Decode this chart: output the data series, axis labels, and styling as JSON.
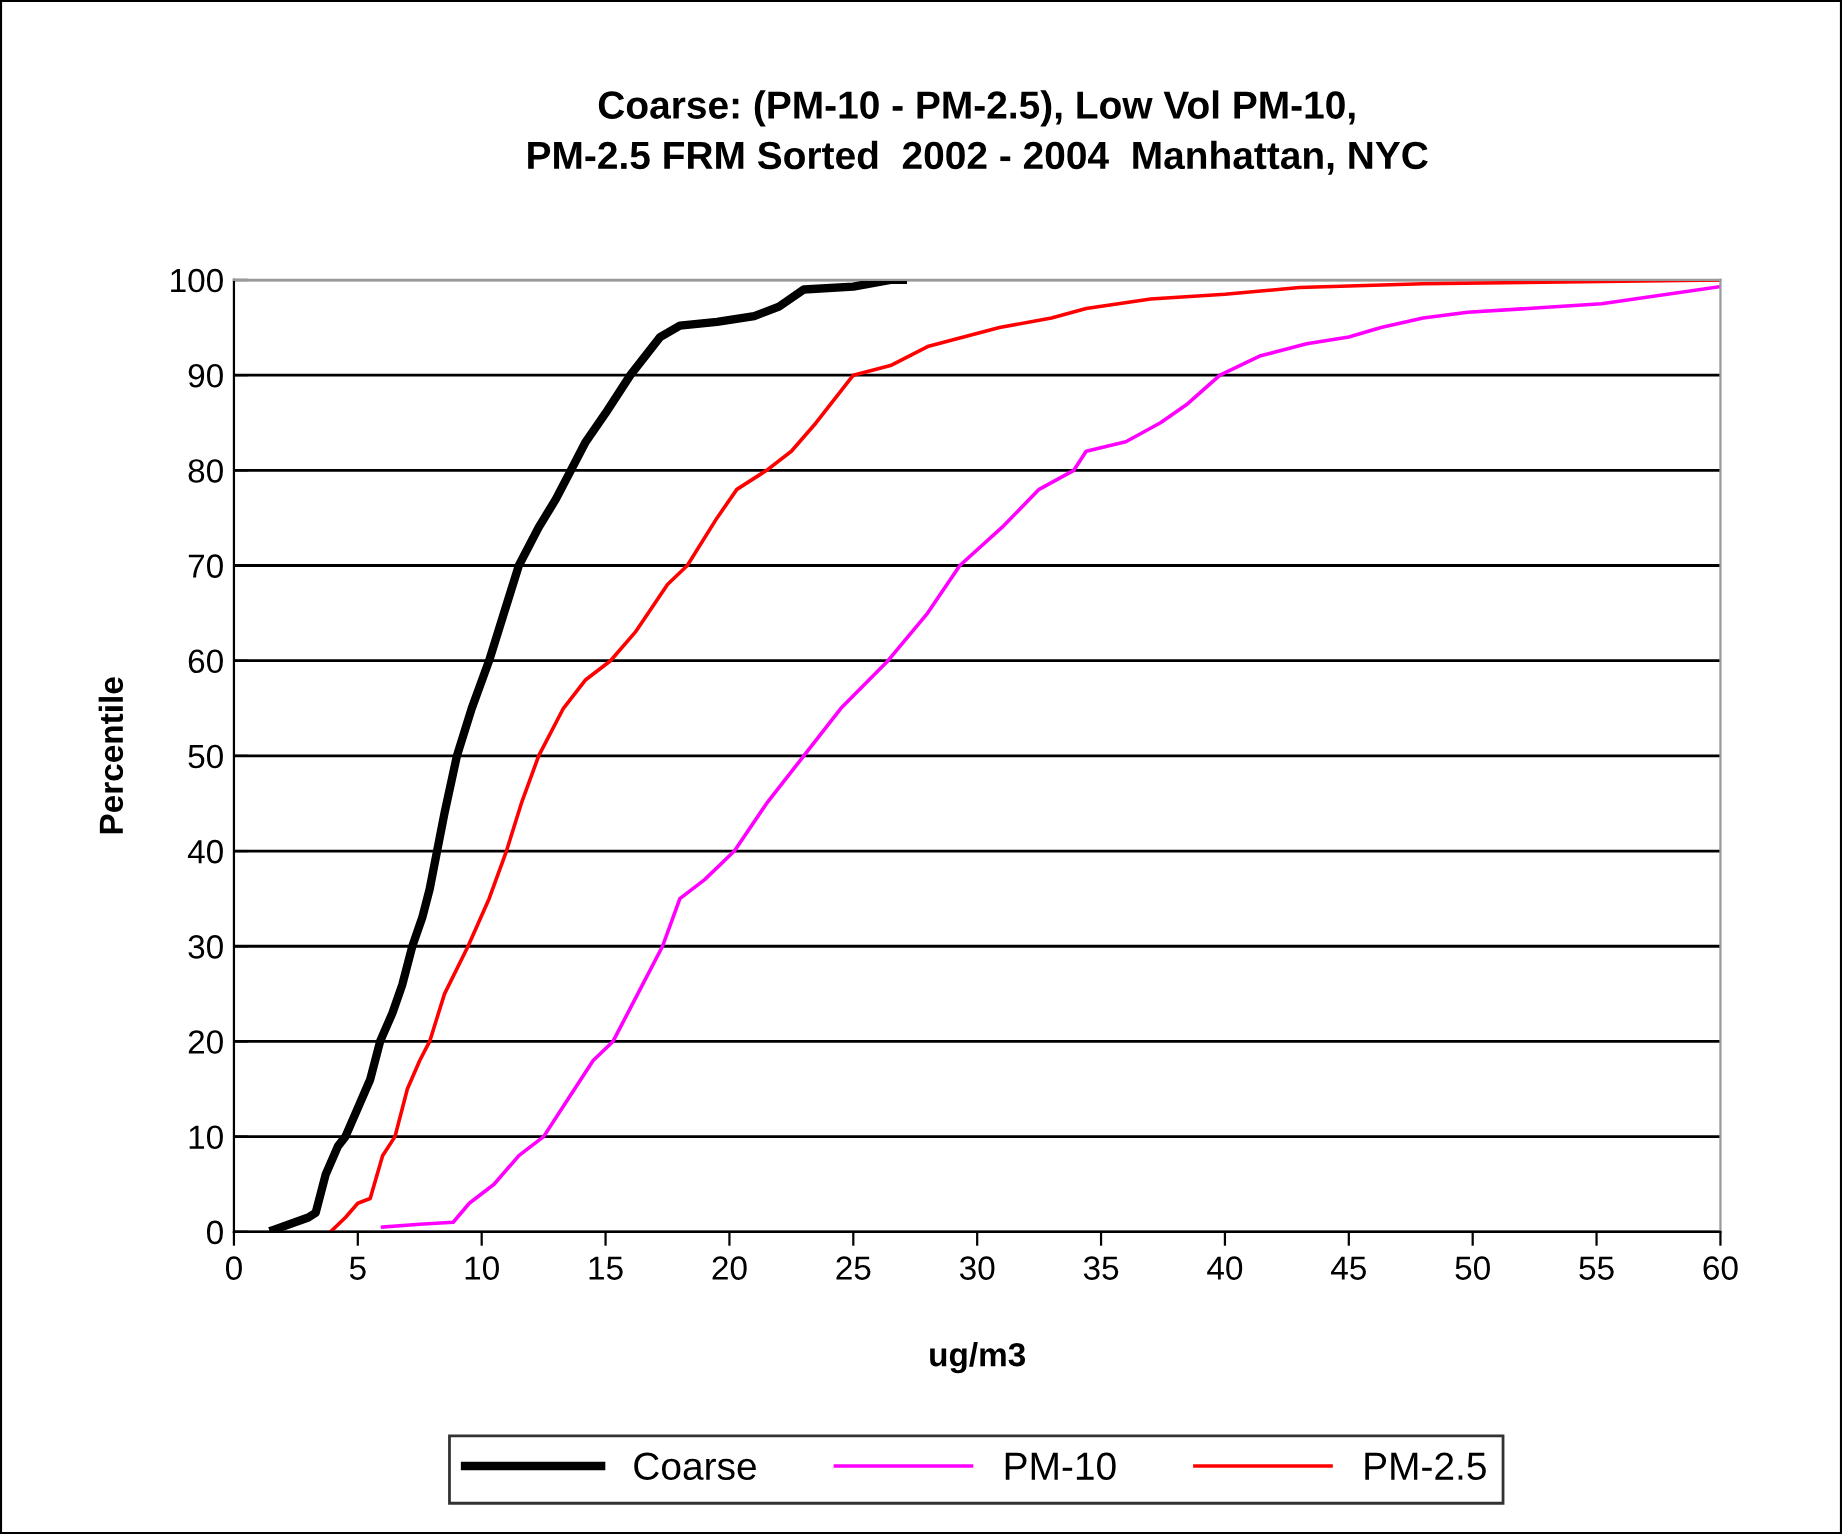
{
  "chart_data": {
    "type": "line",
    "title": "Coarse: (PM-10 - PM-2.5), Low Vol PM-10,\nPM-2.5 FRM Sorted  2002 - 2004  Manhattan, NYC",
    "xlabel": "ug/m3",
    "ylabel": "Percentile",
    "xlim": [
      0,
      60
    ],
    "xticks": [
      0,
      5,
      10,
      15,
      20,
      25,
      30,
      35,
      40,
      45,
      50,
      55,
      60
    ],
    "ylim": [
      0,
      100
    ],
    "yticks": [
      0,
      10,
      20,
      30,
      40,
      50,
      60,
      70,
      80,
      90,
      100
    ],
    "grid": "y",
    "legend": "bottom",
    "marker": "none",
    "line_style": "solid",
    "series": [
      {
        "name": "Coarse",
        "color": "#000000",
        "x": [
          1.6,
          3.0,
          3.3,
          3.7,
          4.2,
          4.5,
          5.0,
          5.5,
          5.9,
          6.4,
          6.8,
          7.2,
          7.6,
          7.9,
          8.2,
          8.5,
          9.0,
          9.6,
          10.3,
          10.9,
          11.5,
          12.3,
          13.0,
          13.6,
          14.2,
          15.0,
          16.0,
          16.6,
          17.2,
          18.0,
          19.5,
          21.0,
          22.0,
          23.0,
          25.0,
          26.5,
          27.0
        ],
        "values": [
          0.2,
          1.5,
          2,
          6,
          9,
          10,
          13,
          16,
          20,
          23,
          26,
          30,
          33,
          36,
          40,
          44,
          50,
          55,
          60,
          65,
          70,
          74,
          77,
          80,
          83,
          86,
          90,
          92,
          94,
          95.2,
          95.6,
          96.2,
          97.2,
          99,
          99.3,
          100,
          100
        ]
      },
      {
        "name": "PM-10",
        "color": "#ff00ff",
        "x": [
          6.0,
          7.5,
          8.85,
          9.5,
          10.5,
          11.5,
          12.5,
          13.5,
          14.5,
          15.3,
          16.3,
          17.3,
          18.0,
          19.0,
          20.2,
          21.5,
          23.0,
          24.5,
          26.4,
          28.0,
          29.3,
          31.0,
          32.5,
          33.9,
          34.4,
          36.0,
          37.4,
          38.5,
          39.8,
          41.4,
          43.3,
          45.0,
          46.3,
          48.0,
          49.8,
          55.2,
          60.0
        ],
        "values": [
          0.5,
          0.8,
          1,
          3,
          5,
          8,
          10,
          14,
          18,
          20,
          25,
          30,
          35,
          37,
          40,
          45,
          50,
          55,
          60,
          65,
          70,
          74,
          78,
          80,
          82,
          83,
          85,
          87,
          90,
          92,
          93.3,
          94,
          95,
          96,
          96.6,
          97.5,
          99.3
        ]
      },
      {
        "name": "PM-2.5",
        "color": "#ff0000",
        "x": [
          3.9,
          4.5,
          5.0,
          5.5,
          6.0,
          6.5,
          7.0,
          7.5,
          7.9,
          8.5,
          9.45,
          10.3,
          11.0,
          11.6,
          12.3,
          13.3,
          14.2,
          15.2,
          16.2,
          17.5,
          18.3,
          19.5,
          20.3,
          21.5,
          22.5,
          23.5,
          25.0,
          26.5,
          28.0,
          30.9,
          33.0,
          34.4,
          37.0,
          40.0,
          43.0,
          48.0,
          60.0
        ],
        "values": [
          0,
          1.5,
          3,
          3.5,
          8,
          10,
          15,
          18,
          20,
          25,
          30,
          35,
          40,
          45,
          50,
          55,
          58,
          60,
          63,
          68,
          70,
          75,
          78,
          80,
          82,
          85,
          90,
          91,
          93,
          95,
          96,
          97,
          98,
          98.5,
          99.2,
          99.6,
          100
        ]
      }
    ]
  }
}
